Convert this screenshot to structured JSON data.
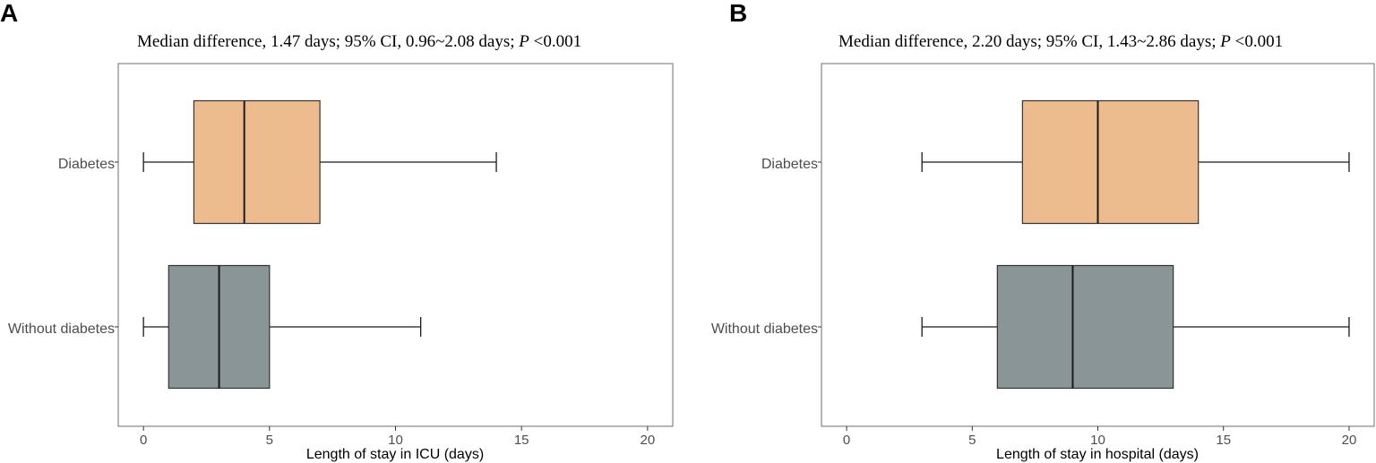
{
  "chart_data": [
    {
      "type": "box",
      "panel_label": "A",
      "subtitle_parts": {
        "pre": "Median difference, 1.47 days; 95% CI, 0.96~2.08 days; ",
        "p": "P",
        "post": " <0.001"
      },
      "xlabel": "Length of stay in ICU (days)",
      "xlim": [
        -1,
        21
      ],
      "xticks": [
        0,
        5,
        10,
        15,
        20
      ],
      "categories": [
        "Diabetes",
        "Without diabetes"
      ],
      "boxes": [
        {
          "group": "Diabetes",
          "min": 0,
          "q1": 2,
          "median": 4,
          "q3": 7,
          "max": 14,
          "color": "#edbc8e"
        },
        {
          "group": "Without diabetes",
          "min": 0,
          "q1": 1,
          "median": 3,
          "q3": 5,
          "max": 11,
          "color": "#8a9598"
        }
      ]
    },
    {
      "type": "box",
      "panel_label": "B",
      "subtitle_parts": {
        "pre": "Median difference, 2.20 days; 95% CI, 1.43~2.86 days; ",
        "p": "P",
        "post": " <0.001"
      },
      "xlabel": "Length of stay in hospital (days)",
      "xlim": [
        -1,
        21
      ],
      "xticks": [
        0,
        5,
        10,
        15,
        20
      ],
      "categories": [
        "Diabetes",
        "Without diabetes"
      ],
      "boxes": [
        {
          "group": "Diabetes",
          "min": 3,
          "q1": 7,
          "median": 10,
          "q3": 14,
          "max": 20,
          "color": "#edbc8e"
        },
        {
          "group": "Without diabetes",
          "min": 3,
          "q1": 6,
          "median": 9,
          "q3": 13,
          "max": 20,
          "color": "#8a9598"
        }
      ]
    }
  ]
}
